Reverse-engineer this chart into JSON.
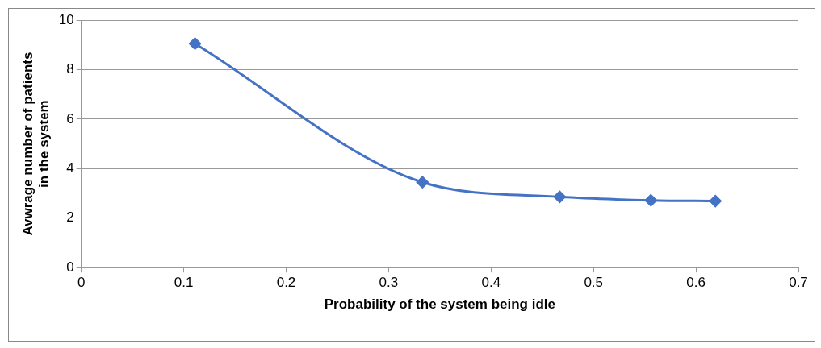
{
  "chart_data": {
    "type": "line",
    "xlabel": "Probability of the system being idle",
    "ylabel": "Avwrage number of patients in the system",
    "x": [
      0.111,
      0.333,
      0.467,
      0.556,
      0.619
    ],
    "series": [
      {
        "color": "#4472c4",
        "values": [
          9.05,
          3.45,
          2.86,
          2.72,
          2.69
        ]
      }
    ],
    "xlim": [
      0,
      0.7
    ],
    "xticks": [
      0,
      0.1,
      0.2,
      0.3,
      0.4,
      0.5,
      0.6,
      0.7
    ],
    "ylim": [
      0,
      10
    ],
    "yticks": [
      0,
      2,
      4,
      6,
      8,
      10
    ],
    "grid": "y",
    "legend": false,
    "marker": "diamond",
    "line_style": "solid"
  }
}
